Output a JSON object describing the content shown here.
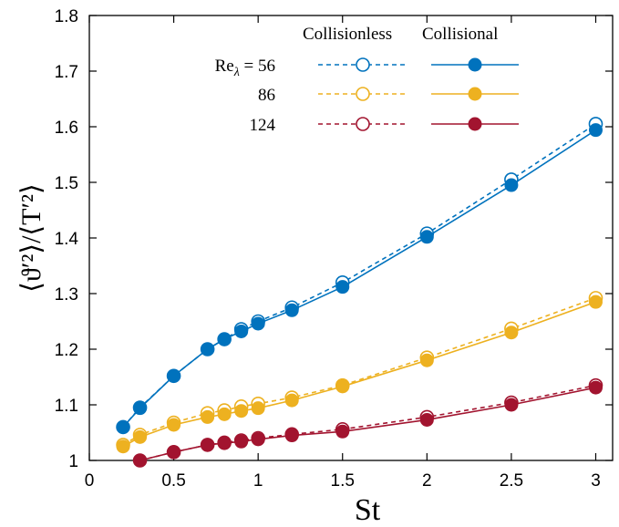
{
  "chart_data": {
    "type": "line",
    "xlabel": "St",
    "ylabel": "⟨ϑ′²⟩/⟨T′²⟩",
    "xlim": [
      0,
      3.1
    ],
    "ylim": [
      1,
      1.8
    ],
    "xticks": [
      "0",
      "0.5",
      "1",
      "1.5",
      "2",
      "2.5",
      "3"
    ],
    "yticks": [
      "1",
      "1.1",
      "1.2",
      "1.3",
      "1.4",
      "1.5",
      "1.6",
      "1.7",
      "1.8"
    ],
    "grid": false,
    "legend": {
      "placement": "top-right",
      "col_headers": [
        "Collisionless",
        "Collisional"
      ],
      "row_labels": [
        "Re",
        "86",
        "124"
      ],
      "row0_subscript": "λ",
      "row0_suffix": " = 56"
    },
    "series": [
      {
        "group": "Re56",
        "kind": "collisionless",
        "color": "#0072bd",
        "x": [
          0.2,
          0.3,
          0.5,
          0.7,
          0.8,
          0.9,
          1.0,
          1.2,
          1.5,
          2.0,
          2.5,
          3.0
        ],
        "y": [
          1.06,
          1.095,
          1.152,
          1.2,
          1.218,
          1.236,
          1.25,
          1.275,
          1.32,
          1.408,
          1.505,
          1.605
        ]
      },
      {
        "group": "Re56",
        "kind": "collisional",
        "color": "#0072bd",
        "x": [
          0.2,
          0.3,
          0.5,
          0.7,
          0.8,
          0.9,
          1.0,
          1.2,
          1.5,
          2.0,
          2.5,
          3.0
        ],
        "y": [
          1.06,
          1.094,
          1.152,
          1.2,
          1.218,
          1.232,
          1.246,
          1.27,
          1.312,
          1.402,
          1.495,
          1.594
        ]
      },
      {
        "group": "Re86",
        "kind": "collisionless",
        "color": "#edb120",
        "x": [
          0.2,
          0.3,
          0.5,
          0.7,
          0.8,
          0.9,
          1.0,
          1.2,
          1.5,
          2.0,
          2.5,
          3.0
        ],
        "y": [
          1.028,
          1.046,
          1.068,
          1.085,
          1.09,
          1.097,
          1.102,
          1.113,
          1.135,
          1.185,
          1.237,
          1.292
        ]
      },
      {
        "group": "Re86",
        "kind": "collisional",
        "color": "#edb120",
        "x": [
          0.2,
          0.3,
          0.5,
          0.7,
          0.8,
          0.9,
          1.0,
          1.2,
          1.5,
          2.0,
          2.5,
          3.0
        ],
        "y": [
          1.025,
          1.042,
          1.064,
          1.078,
          1.083,
          1.089,
          1.094,
          1.108,
          1.133,
          1.18,
          1.23,
          1.285
        ]
      },
      {
        "group": "Re124",
        "kind": "collisionless",
        "color": "#a2142f",
        "x": [
          0.3,
          0.5,
          0.7,
          0.8,
          0.9,
          1.0,
          1.2,
          1.5,
          2.0,
          2.5,
          3.0
        ],
        "y": [
          1.0,
          1.015,
          1.028,
          1.032,
          1.036,
          1.04,
          1.047,
          1.056,
          1.078,
          1.104,
          1.135
        ]
      },
      {
        "group": "Re124",
        "kind": "collisional",
        "color": "#a2142f",
        "x": [
          0.3,
          0.5,
          0.7,
          0.8,
          0.9,
          1.0,
          1.2,
          1.5,
          2.0,
          2.5,
          3.0
        ],
        "y": [
          1.0,
          1.015,
          1.028,
          1.031,
          1.034,
          1.038,
          1.045,
          1.052,
          1.073,
          1.1,
          1.131
        ]
      }
    ]
  }
}
